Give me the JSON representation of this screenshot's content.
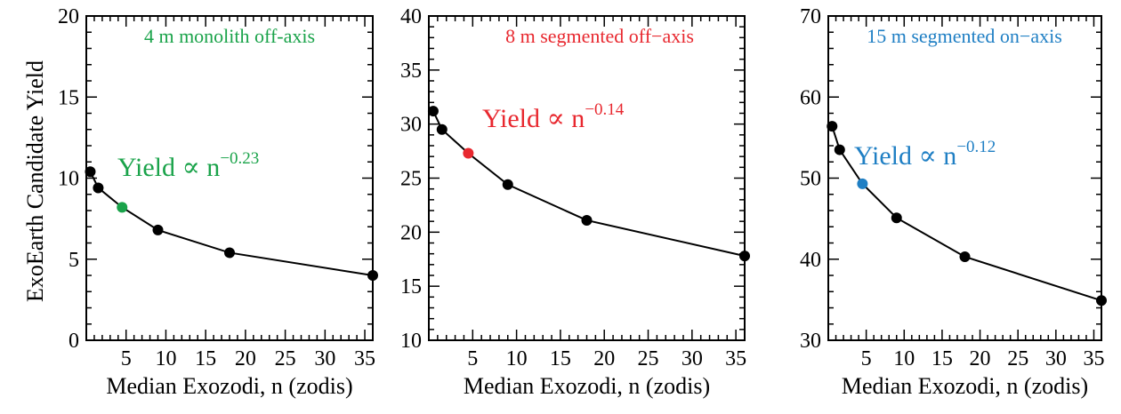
{
  "figure": {
    "ylabel": "ExoEarth Candidate Yield"
  },
  "chart_data": [
    {
      "type": "line",
      "title": "4 m monolith off-axis",
      "title_color": "#1aa34a",
      "xlabel": "Median Exozodi, n (zodis)",
      "ylabel": "ExoEarth Candidate Yield",
      "xlim": [
        0,
        36
      ],
      "ylim": [
        0,
        20
      ],
      "xticks": [
        5,
        10,
        15,
        20,
        25,
        30,
        35
      ],
      "yticks": [
        0,
        5,
        10,
        15,
        20
      ],
      "x": [
        0.5,
        1.5,
        4.5,
        9,
        18,
        36
      ],
      "y": [
        10.4,
        9.4,
        8.2,
        6.8,
        5.4,
        4.0
      ],
      "highlight_index": 2,
      "highlight_color": "#1aa34a",
      "annotation": {
        "base": "Yield ∝ n",
        "exponent": "−0.23",
        "color": "#1aa34a"
      },
      "grid": false
    },
    {
      "type": "line",
      "title": "8 m segmented off−axis",
      "title_color": "#e8282f",
      "xlabel": "Median Exozodi, n (zodis)",
      "ylabel": "",
      "xlim": [
        0,
        36
      ],
      "ylim": [
        10,
        40
      ],
      "xticks": [
        5,
        10,
        15,
        20,
        25,
        30,
        35
      ],
      "yticks": [
        10,
        15,
        20,
        25,
        30,
        35,
        40
      ],
      "x": [
        0.5,
        1.5,
        4.5,
        9,
        18,
        36
      ],
      "y": [
        31.2,
        29.5,
        27.3,
        24.4,
        21.1,
        17.8
      ],
      "highlight_index": 2,
      "highlight_color": "#e8282f",
      "annotation": {
        "base": "Yield ∝ n",
        "exponent": "−0.14",
        "color": "#e8282f"
      },
      "grid": false
    },
    {
      "type": "line",
      "title": "15 m segmented on−axis",
      "title_color": "#1f7fc4",
      "xlabel": "Median Exozodi, n (zodis)",
      "ylabel": "",
      "xlim": [
        0,
        36
      ],
      "ylim": [
        30,
        70
      ],
      "xticks": [
        5,
        10,
        15,
        20,
        25,
        30,
        35
      ],
      "yticks": [
        30,
        40,
        50,
        60,
        70
      ],
      "x": [
        0.5,
        1.5,
        4.5,
        9,
        18,
        36
      ],
      "y": [
        56.4,
        53.5,
        49.3,
        45.1,
        40.3,
        34.9
      ],
      "highlight_index": 2,
      "highlight_color": "#1f7fc4",
      "annotation": {
        "base": "Yield ∝ n",
        "exponent": "−0.12",
        "color": "#1f7fc4"
      },
      "grid": false
    }
  ]
}
